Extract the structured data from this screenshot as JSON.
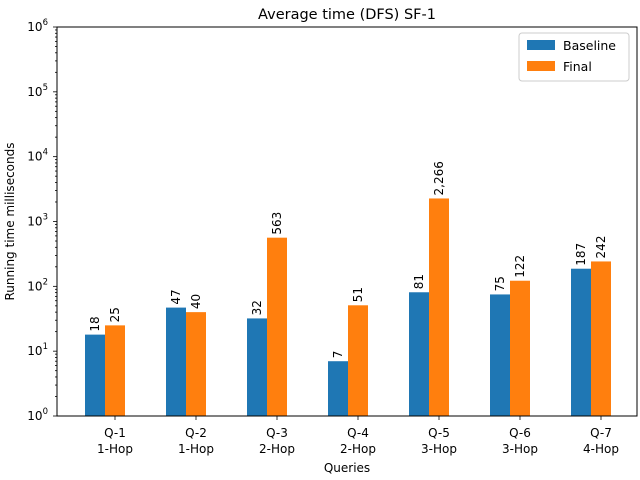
{
  "chart_data": {
    "type": "bar",
    "title": "Average time (DFS) SF-1",
    "xlabel": "Queries",
    "ylabel": "Running time milliseconds",
    "yscale": "log",
    "ylim": [
      1,
      1000000
    ],
    "y_ticks": [
      {
        "value": 1,
        "base": "10",
        "exp": "0"
      },
      {
        "value": 10,
        "base": "10",
        "exp": "1"
      },
      {
        "value": 100,
        "base": "10",
        "exp": "2"
      },
      {
        "value": 1000,
        "base": "10",
        "exp": "3"
      },
      {
        "value": 10000,
        "base": "10",
        "exp": "4"
      },
      {
        "value": 100000,
        "base": "10",
        "exp": "5"
      },
      {
        "value": 1000000,
        "base": "10",
        "exp": "6"
      }
    ],
    "categories": [
      {
        "line1": "Q-1",
        "line2": "1-Hop"
      },
      {
        "line1": "Q-2",
        "line2": "1-Hop"
      },
      {
        "line1": "Q-3",
        "line2": "2-Hop"
      },
      {
        "line1": "Q-4",
        "line2": "2-Hop"
      },
      {
        "line1": "Q-5",
        "line2": "3-Hop"
      },
      {
        "line1": "Q-6",
        "line2": "3-Hop"
      },
      {
        "line1": "Q-7",
        "line2": "4-Hop"
      }
    ],
    "series": [
      {
        "name": "Baseline",
        "color": "#1f77b4",
        "values": [
          18,
          47,
          32,
          7,
          81,
          75,
          187
        ],
        "labels": [
          "18",
          "47",
          "32",
          "7",
          "81",
          "75",
          "187"
        ]
      },
      {
        "name": "Final",
        "color": "#ff7f0e",
        "values": [
          25,
          40,
          563,
          51,
          2266,
          122,
          242
        ],
        "labels": [
          "25",
          "40",
          "563",
          "51",
          "2,266",
          "122",
          "242"
        ]
      }
    ],
    "legend_position": "top-right",
    "grid": false
  }
}
